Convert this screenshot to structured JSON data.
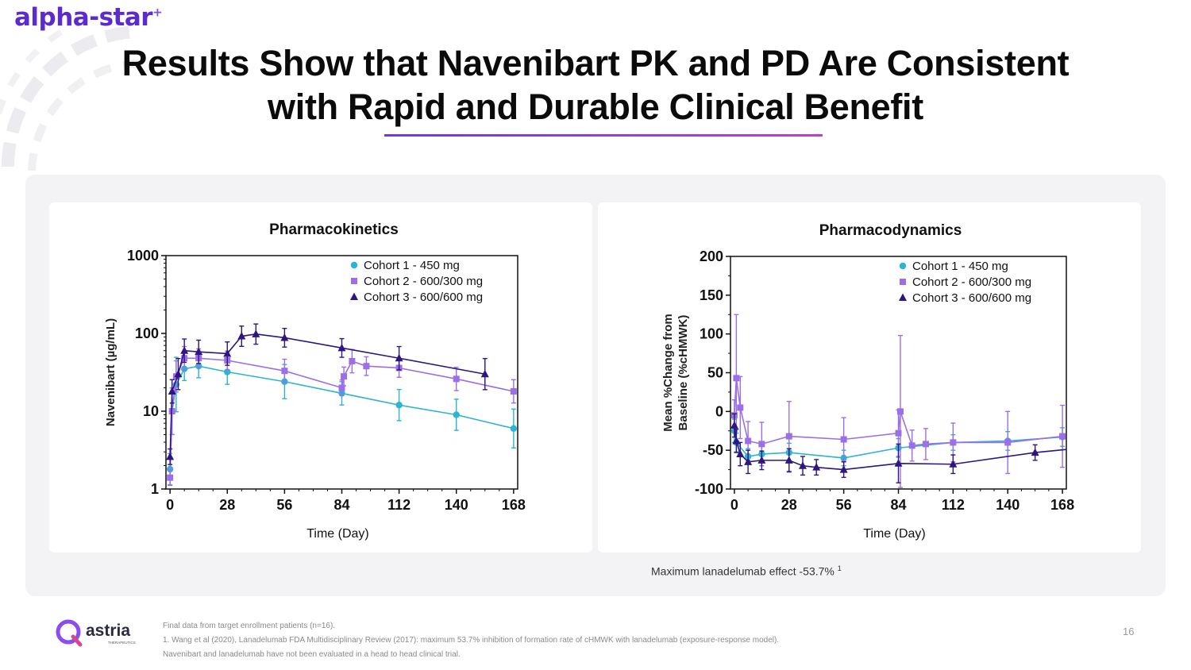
{
  "brand": {
    "name": "alpha-star",
    "sup": "+",
    "color": "#5b2bd0"
  },
  "title": {
    "line1": "Results Show that Navenibart PK and PD Are Consistent",
    "line2": "with Rapid and Durable Clinical Benefit"
  },
  "footer": {
    "logo_name": "astria",
    "logo_sub": "THERAPEUTICS",
    "note1": "Final data from target enrollment patients (n=16).",
    "note2": "1. Wang et al (2020),  Lanadelumab FDA Multidisciplinary Review (2017):  maximum 53.7% inhibition of formation rate of cHMWK with lanadelumab (exposure-response model).",
    "note3": "Navenibart and lanadelumab have not been evaluated in a head to head clinical trial.",
    "page": "16"
  },
  "pd_note": {
    "text": "Maximum lanadelumab effect -53.7%",
    "sup": "1"
  },
  "chart_data": [
    {
      "type": "line",
      "title": "Pharmacokinetics",
      "xlabel": "Time (Day)",
      "ylabel": "Navenibart (µg/mL)",
      "yscale": "log",
      "ylim": [
        1,
        1000
      ],
      "yticks": [
        "1",
        "10",
        "100",
        "1000"
      ],
      "xlim": [
        -2,
        170
      ],
      "xticks": [
        "0",
        "28",
        "56",
        "84",
        "112",
        "140",
        "168"
      ],
      "legend_position": "top-right",
      "series": [
        {
          "name": "Cohort 1 - 450 mg",
          "color": "#2bb5d0",
          "marker": "circle",
          "x": [
            0,
            1,
            3,
            7,
            14,
            28,
            56,
            84,
            112,
            140,
            168
          ],
          "y": [
            1.8,
            10,
            22,
            35,
            38,
            32,
            24,
            17,
            12,
            9,
            6
          ],
          "err": [
            0.2,
            0.3,
            0.35,
            0.15,
            0.15,
            0.16,
            0.22,
            0.15,
            0.2,
            0.2,
            0.25
          ]
        },
        {
          "name": "Cohort 2 - 600/300 mg",
          "color": "#9b6fe8",
          "marker": "square",
          "x": [
            0,
            1,
            3,
            7,
            14,
            28,
            56,
            84,
            85,
            89,
            96,
            112,
            140,
            168
          ],
          "y": [
            1.4,
            10,
            28,
            48,
            48,
            45,
            33,
            20,
            28,
            44,
            38,
            36,
            26,
            18
          ],
          "err": [
            0.1,
            0.3,
            0.2,
            0.15,
            0.12,
            0.12,
            0.15,
            0.1,
            0.12,
            0.15,
            0.12,
            0.12,
            0.15,
            0.15
          ]
        },
        {
          "name": "Cohort 3 - 600/600 mg",
          "color": "#2e1580",
          "marker": "triangle",
          "x": [
            0,
            1,
            4,
            7,
            14,
            28,
            35,
            42,
            56,
            84,
            112,
            154
          ],
          "y": [
            2.6,
            18,
            30,
            60,
            58,
            55,
            92,
            98,
            88,
            65,
            48,
            30
          ],
          "err": [
            0.1,
            0.15,
            0.2,
            0.15,
            0.15,
            0.15,
            0.13,
            0.13,
            0.12,
            0.12,
            0.15,
            0.2
          ]
        }
      ]
    },
    {
      "type": "line",
      "title": "Pharmacodynamics",
      "xlabel": "Time (Day)",
      "ylabel": [
        "Mean %Change from",
        "Baseline (%cHMWK)"
      ],
      "ylim": [
        -100,
        200
      ],
      "yticks": [
        "-100",
        "-50",
        "0",
        "50",
        "100",
        "150",
        "200"
      ],
      "xlim": [
        -2,
        170
      ],
      "xticks": [
        "0",
        "28",
        "56",
        "84",
        "112",
        "140",
        "168"
      ],
      "legend_position": "top-right",
      "series": [
        {
          "name": "Cohort 1 - 450 mg",
          "color": "#2bb5d0",
          "marker": "circle",
          "x": [
            0,
            1,
            7,
            14,
            28,
            56,
            84,
            112,
            140,
            168
          ],
          "y": [
            -25,
            -40,
            -58,
            -55,
            -53,
            -60,
            -47,
            -40,
            -38,
            -33
          ],
          "err": [
            15,
            12,
            10,
            10,
            12,
            10,
            12,
            10,
            12,
            12
          ]
        },
        {
          "name": "Cohort 2 - 600/300 mg",
          "color": "#9b6fe8",
          "marker": "square",
          "x": [
            0,
            1,
            3,
            7,
            14,
            28,
            56,
            84,
            85,
            91,
            98,
            112,
            140,
            168
          ],
          "y": [
            -5,
            43,
            5,
            -38,
            -42,
            -32,
            -36,
            -28,
            0,
            -44,
            -42,
            -40,
            -40,
            -32
          ],
          "err": [
            20,
            82,
            40,
            25,
            28,
            45,
            28,
            30,
            98,
            20,
            20,
            25,
            40,
            40
          ]
        },
        {
          "name": "Cohort 3 - 600/600 mg",
          "color": "#2e1580",
          "marker": "triangle",
          "x": [
            0,
            1,
            3,
            7,
            14,
            28,
            35,
            42,
            56,
            84,
            112,
            154,
            170
          ],
          "y": [
            -18,
            -38,
            -55,
            -65,
            -63,
            -63,
            -70,
            -72,
            -75,
            -67,
            -68,
            -53,
            -49
          ],
          "err": [
            15,
            15,
            15,
            15,
            12,
            15,
            12,
            10,
            10,
            25,
            12,
            10,
            0
          ]
        }
      ]
    }
  ]
}
